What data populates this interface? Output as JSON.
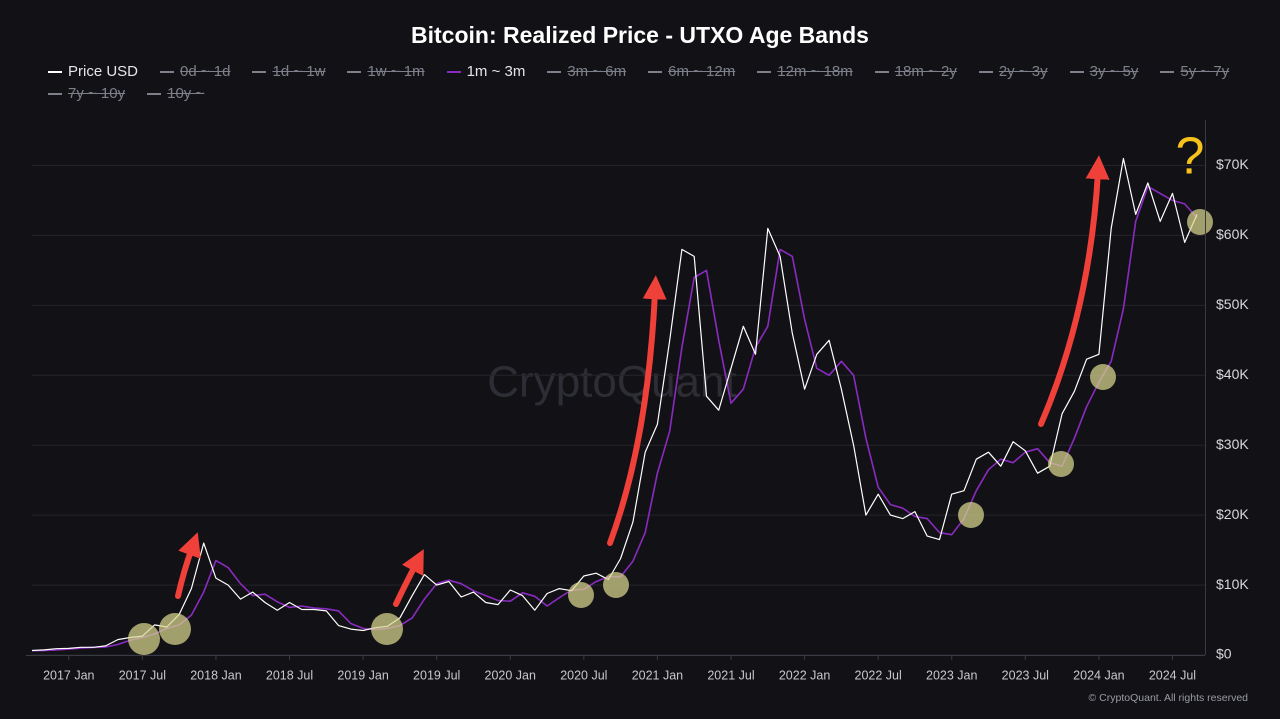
{
  "chart_data": {
    "type": "line",
    "title": "Bitcoin: Realized Price - UTXO Age Bands",
    "watermark": "CryptoQuant",
    "footer": "© CryptoQuant. All rights reserved",
    "annotation": "?",
    "x": [
      "2016-10",
      "2016-11",
      "2016-12",
      "2017-01",
      "2017-02",
      "2017-03",
      "2017-04",
      "2017-05",
      "2017-06",
      "2017-07",
      "2017-08",
      "2017-09",
      "2017-10",
      "2017-11",
      "2017-12",
      "2018-01",
      "2018-02",
      "2018-03",
      "2018-04",
      "2018-05",
      "2018-06",
      "2018-07",
      "2018-08",
      "2018-09",
      "2018-10",
      "2018-11",
      "2018-12",
      "2019-01",
      "2019-02",
      "2019-03",
      "2019-04",
      "2019-05",
      "2019-06",
      "2019-07",
      "2019-08",
      "2019-09",
      "2019-10",
      "2019-11",
      "2019-12",
      "2020-01",
      "2020-02",
      "2020-03",
      "2020-04",
      "2020-05",
      "2020-06",
      "2020-07",
      "2020-08",
      "2020-09",
      "2020-10",
      "2020-11",
      "2020-12",
      "2021-01",
      "2021-02",
      "2021-03",
      "2021-04",
      "2021-05",
      "2021-06",
      "2021-07",
      "2021-08",
      "2021-09",
      "2021-10",
      "2021-11",
      "2021-12",
      "2022-01",
      "2022-02",
      "2022-03",
      "2022-04",
      "2022-05",
      "2022-06",
      "2022-07",
      "2022-08",
      "2022-09",
      "2022-10",
      "2022-11",
      "2022-12",
      "2023-01",
      "2023-02",
      "2023-03",
      "2023-04",
      "2023-05",
      "2023-06",
      "2023-07",
      "2023-08",
      "2023-09",
      "2023-10",
      "2023-11",
      "2023-12",
      "2024-01",
      "2024-02",
      "2024-03",
      "2024-04",
      "2024-05",
      "2024-06",
      "2024-07",
      "2024-08",
      "2024-09"
    ],
    "xlim": [
      "2016-10",
      "2024-09"
    ],
    "xticks": [
      {
        "value": "2017-01",
        "label": "2017 Jan"
      },
      {
        "value": "2017-07",
        "label": "2017 Jul"
      },
      {
        "value": "2018-01",
        "label": "2018 Jan"
      },
      {
        "value": "2018-07",
        "label": "2018 Jul"
      },
      {
        "value": "2019-01",
        "label": "2019 Jan"
      },
      {
        "value": "2019-07",
        "label": "2019 Jul"
      },
      {
        "value": "2020-01",
        "label": "2020 Jan"
      },
      {
        "value": "2020-07",
        "label": "2020 Jul"
      },
      {
        "value": "2021-01",
        "label": "2021 Jan"
      },
      {
        "value": "2021-07",
        "label": "2021 Jul"
      },
      {
        "value": "2022-01",
        "label": "2022 Jan"
      },
      {
        "value": "2022-07",
        "label": "2022 Jul"
      },
      {
        "value": "2023-01",
        "label": "2023 Jan"
      },
      {
        "value": "2023-07",
        "label": "2023 Jul"
      },
      {
        "value": "2024-01",
        "label": "2024 Jan"
      },
      {
        "value": "2024-07",
        "label": "2024 Jul"
      }
    ],
    "ylim": [
      0,
      76500
    ],
    "yticks": [
      {
        "value": 0,
        "label": "$0"
      },
      {
        "value": 10000,
        "label": "$10K"
      },
      {
        "value": 20000,
        "label": "$20K"
      },
      {
        "value": 30000,
        "label": "$30K"
      },
      {
        "value": 40000,
        "label": "$40K"
      },
      {
        "value": 50000,
        "label": "$50K"
      },
      {
        "value": 60000,
        "label": "$60K"
      },
      {
        "value": 70000,
        "label": "$70K"
      }
    ],
    "y_axis_side": "right",
    "grid": true,
    "series": [
      {
        "name": "Price USD",
        "color": "#ffffff",
        "values": [
          650,
          730,
          900,
          950,
          1100,
          1100,
          1300,
          2200,
          2500,
          2700,
          4300,
          4000,
          5800,
          9500,
          16000,
          11000,
          10000,
          8000,
          9000,
          7500,
          6400,
          7500,
          6500,
          6500,
          6300,
          4200,
          3700,
          3500,
          3900,
          4100,
          5300,
          8500,
          11500,
          10000,
          10500,
          8300,
          9000,
          7500,
          7200,
          9300,
          8500,
          6400,
          8800,
          9500,
          9200,
          11300,
          11700,
          10800,
          13800,
          19000,
          29000,
          33000,
          45000,
          58000,
          57000,
          37000,
          35000,
          41000,
          47000,
          43000,
          61000,
          57000,
          46000,
          38000,
          43000,
          45000,
          38000,
          30000,
          20000,
          23000,
          20000,
          19500,
          20500,
          17000,
          16500,
          23000,
          23500,
          28000,
          29000,
          27000,
          30500,
          29200,
          26000,
          27000,
          34500,
          37700,
          42300,
          43000,
          61000,
          71000,
          63000,
          67500,
          62000,
          66000,
          59000,
          63000
        ]
      },
      {
        "name": "0d ~ 1d",
        "color": "#6f727c",
        "hidden": true
      },
      {
        "name": "1d ~ 1w",
        "color": "#6f727c",
        "hidden": true
      },
      {
        "name": "1w ~ 1m",
        "color": "#6f727c",
        "hidden": true
      },
      {
        "name": "1m ~ 3m",
        "color": "#8a2bc0",
        "values": [
          620,
          650,
          720,
          850,
          980,
          1080,
          1150,
          1500,
          2100,
          2500,
          3000,
          3800,
          4300,
          5700,
          9000,
          13500,
          12500,
          10200,
          8500,
          8700,
          7600,
          6800,
          7000,
          6700,
          6600,
          6300,
          4500,
          3800,
          3650,
          3800,
          4200,
          5300,
          8000,
          10200,
          10700,
          10200,
          9200,
          8500,
          7800,
          7700,
          8900,
          8400,
          7000,
          8200,
          9300,
          9400,
          10500,
          11200,
          11200,
          13400,
          17500,
          26000,
          32000,
          44000,
          54000,
          55000,
          45000,
          36000,
          38000,
          44000,
          47000,
          58000,
          57000,
          48000,
          41000,
          40000,
          42000,
          40000,
          31000,
          24000,
          21500,
          21000,
          19800,
          19500,
          17500,
          17200,
          19500,
          23500,
          26500,
          28000,
          27500,
          29000,
          29500,
          27500,
          27000,
          31000,
          35500,
          39000,
          42000,
          49500,
          62000,
          67000,
          66000,
          65000,
          64500,
          62500
        ]
      },
      {
        "name": "3m ~ 6m",
        "color": "#6f727c",
        "hidden": true
      },
      {
        "name": "6m ~ 12m",
        "color": "#6f727c",
        "hidden": true
      },
      {
        "name": "12m ~ 18m",
        "color": "#6f727c",
        "hidden": true
      },
      {
        "name": "18m ~ 2y",
        "color": "#6f727c",
        "hidden": true
      },
      {
        "name": "2y ~ 3y",
        "color": "#6f727c",
        "hidden": true
      },
      {
        "name": "3y ~ 5y",
        "color": "#6f727c",
        "hidden": true
      },
      {
        "name": "5y ~ 7y",
        "color": "#6f727c",
        "hidden": true
      },
      {
        "name": "7y ~ 10y",
        "color": "#6f727c",
        "hidden": true
      },
      {
        "name": "10y ~",
        "color": "#6f727c",
        "hidden": true
      }
    ]
  }
}
